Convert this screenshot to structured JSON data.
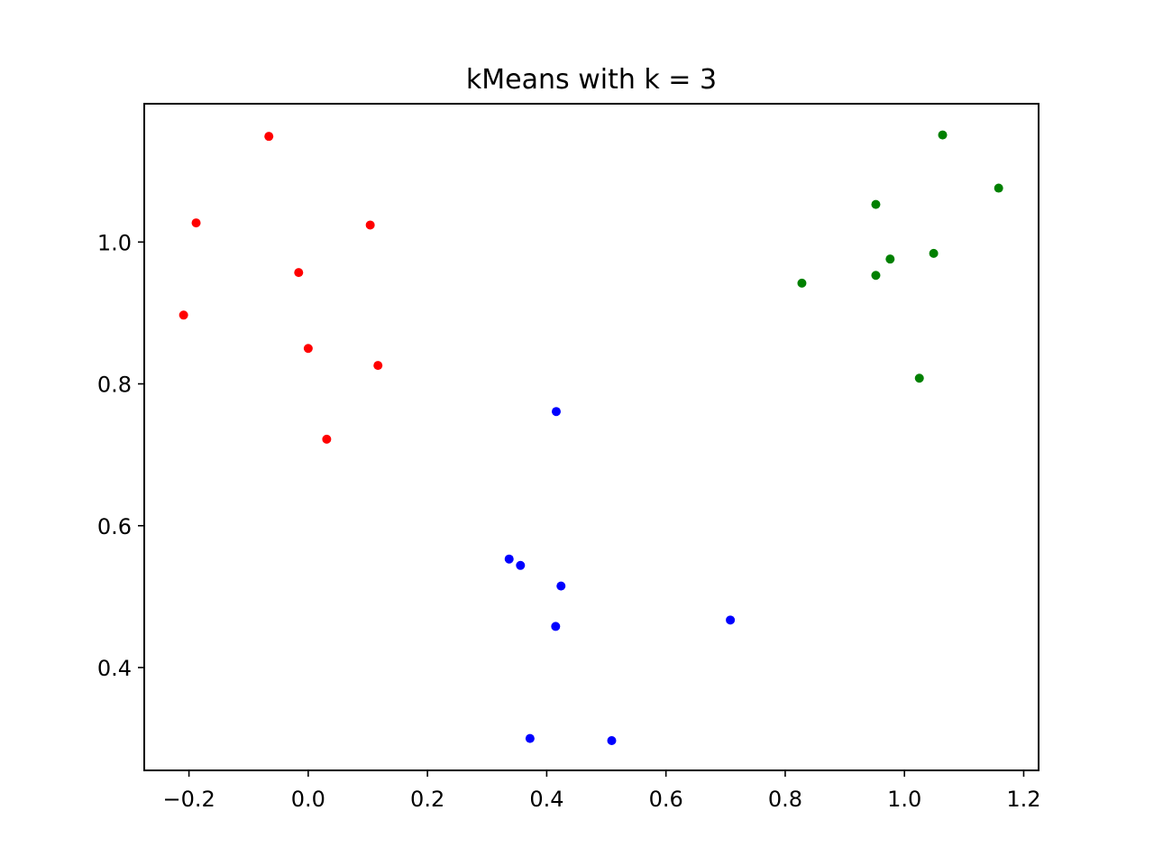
{
  "chart_data": {
    "type": "scatter",
    "title": "kMeans with k = 3",
    "xlabel": "",
    "ylabel": "",
    "xlim": [
      -0.275,
      1.225
    ],
    "ylim": [
      0.255,
      1.195
    ],
    "grid": false,
    "xticks": [
      {
        "value": -0.2,
        "label": "−0.2"
      },
      {
        "value": 0.0,
        "label": "0.0"
      },
      {
        "value": 0.2,
        "label": "0.2"
      },
      {
        "value": 0.4,
        "label": "0.4"
      },
      {
        "value": 0.6,
        "label": "0.6"
      },
      {
        "value": 0.8,
        "label": "0.8"
      },
      {
        "value": 1.0,
        "label": "1.0"
      },
      {
        "value": 1.2,
        "label": "1.2"
      }
    ],
    "yticks": [
      {
        "value": 0.4,
        "label": "0.4"
      },
      {
        "value": 0.6,
        "label": "0.6"
      },
      {
        "value": 0.8,
        "label": "0.8"
      },
      {
        "value": 1.0,
        "label": "1.0"
      }
    ],
    "series": [
      {
        "color": "#ff0000",
        "points": [
          [
            -0.066,
            1.149
          ],
          [
            -0.188,
            1.027
          ],
          [
            0.104,
            1.024
          ],
          [
            -0.016,
            0.957
          ],
          [
            -0.209,
            0.897
          ],
          [
            0.0,
            0.85
          ],
          [
            0.117,
            0.826
          ],
          [
            0.031,
            0.722
          ]
        ]
      },
      {
        "color": "#0000ff",
        "points": [
          [
            0.416,
            0.761
          ],
          [
            0.337,
            0.553
          ],
          [
            0.356,
            0.544
          ],
          [
            0.424,
            0.515
          ],
          [
            0.415,
            0.458
          ],
          [
            0.708,
            0.467
          ],
          [
            0.372,
            0.3
          ],
          [
            0.509,
            0.297
          ]
        ]
      },
      {
        "color": "#008000",
        "points": [
          [
            1.064,
            1.151
          ],
          [
            1.158,
            1.076
          ],
          [
            0.952,
            1.053
          ],
          [
            1.049,
            0.984
          ],
          [
            0.976,
            0.976
          ],
          [
            0.952,
            0.953
          ],
          [
            0.828,
            0.942
          ],
          [
            1.025,
            0.808
          ]
        ]
      }
    ]
  }
}
